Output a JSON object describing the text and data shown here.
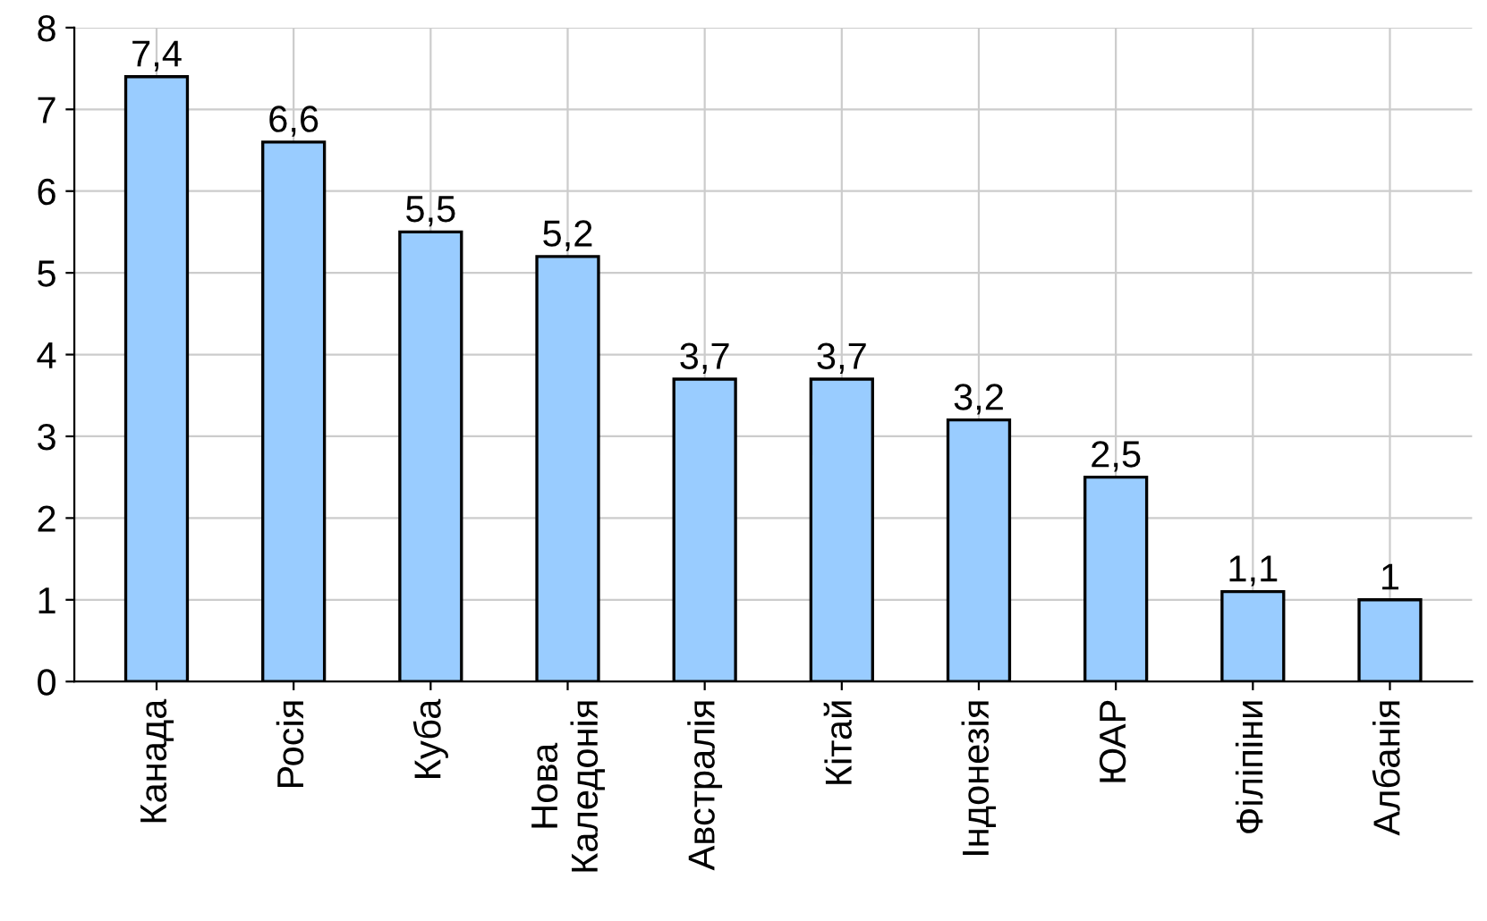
{
  "chart_data": {
    "type": "bar",
    "categories": [
      "Канада",
      "Росія",
      "Куба",
      "Нова\nКаледонія",
      "Австралія",
      "Кітай",
      "Індонезія",
      "ЮАР",
      "Філіпіни",
      "Албанія"
    ],
    "values": [
      7.4,
      6.6,
      5.5,
      5.2,
      3.7,
      3.7,
      3.2,
      2.5,
      1.1,
      1
    ],
    "value_labels": [
      "7,4",
      "6,6",
      "5,5",
      "5,2",
      "3,7",
      "3,7",
      "3,2",
      "2,5",
      "1,1",
      "1"
    ],
    "color": "#99ccff",
    "ylim": [
      0,
      8
    ],
    "yticks": [
      0,
      1,
      2,
      3,
      4,
      5,
      6,
      7,
      8
    ],
    "grid": true
  }
}
